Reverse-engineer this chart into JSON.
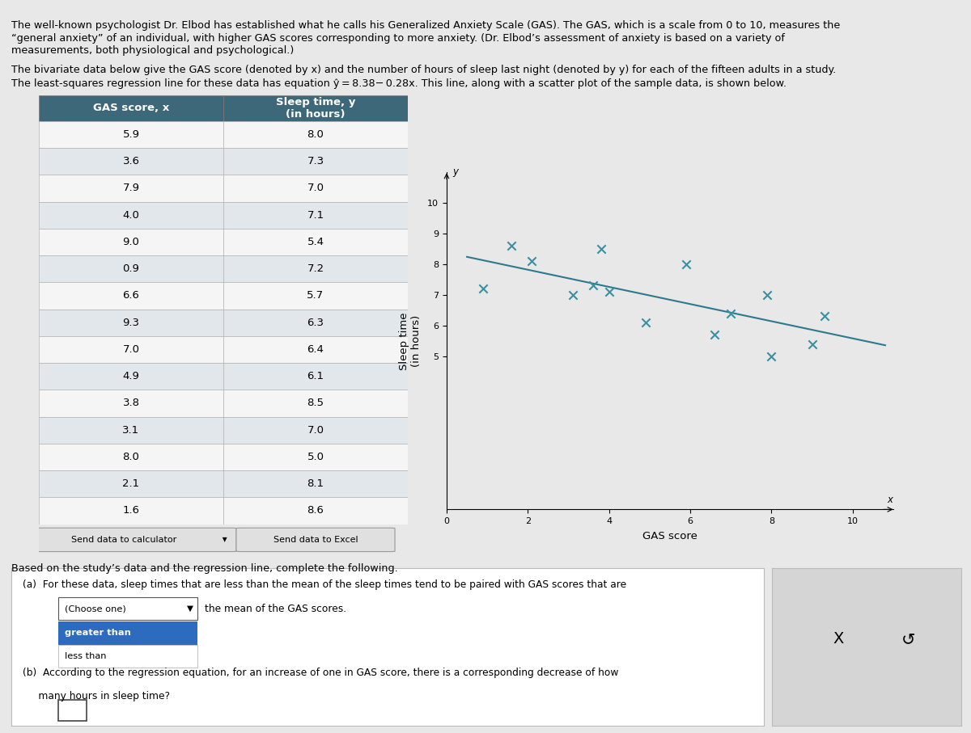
{
  "gas_scores": [
    5.9,
    3.6,
    7.9,
    4.0,
    9.0,
    0.9,
    6.6,
    9.3,
    7.0,
    4.9,
    3.8,
    3.1,
    8.0,
    2.1,
    1.6
  ],
  "sleep_times": [
    8.0,
    7.3,
    7.0,
    7.1,
    5.4,
    7.2,
    5.7,
    6.3,
    6.4,
    6.1,
    8.5,
    7.0,
    5.0,
    8.1,
    8.6
  ],
  "col1_header": "GAS score, x",
  "col2_header": "Sleep time, y\n(in hours)",
  "regression_intercept": 8.38,
  "regression_slope": -0.28,
  "scatter_color": "#3a8fa0",
  "line_color": "#2e7a8c",
  "plot_xlabel": "GAS score",
  "plot_ylabel": "Sleep time\n(in hours)",
  "xlim": [
    0,
    11
  ],
  "ylim": [
    0,
    11
  ],
  "xticks": [
    0,
    2,
    4,
    6,
    8,
    10
  ],
  "yticks": [
    5,
    6,
    7,
    8,
    9,
    10
  ],
  "bg_color": "#e8e8e8",
  "table_header_bg": "#3d6879",
  "table_header_fg": "#ffffff",
  "send_calc_text": "Send data to calculator",
  "send_excel_text": "Send data to Excel",
  "based_text": "Based on the study’s data and the regression line, complete the following.",
  "para1_line1": "The well-known psychologist Dr. Elbod has established what he calls his Generalized Anxiety Scale (GAS). The GAS, which is a scale from 0 to 10, measures the",
  "para1_line2": "“general anxiety” of an individual, with higher GAS scores corresponding to more anxiety. (Dr. Elbod’s assessment of anxiety is based on a variety of",
  "para1_line3": "measurements, both physiological and psychological.)",
  "para2": "The bivariate data below give the GAS score (denoted by x) and the number of hours of sleep last night (denoted by y) for each of the fifteen adults in a study.",
  "para3": "The least-squares regression line for these data has equation ŷ = 8.38− 0.28x. This line, along with a scatter plot of the sample data, is shown below.",
  "qa_a": "(a)  For these data, sleep times that are less than the mean of the sleep times tend to be paired with GAS scores that are",
  "qa_a2": "the mean of the GAS scores.",
  "qa_b": "(b)  According to the regression equation, for an increase of one in GAS score, there is a corresponding decrease of how",
  "qa_b2": "     many hours in sleep time?"
}
